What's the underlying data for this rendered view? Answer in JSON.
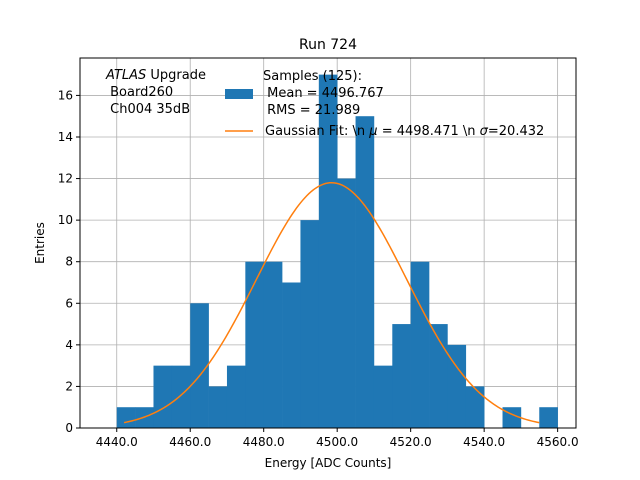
{
  "chart_data": {
    "type": "histogram",
    "title": "Run 724",
    "xlabel": "Energy [ADC Counts]",
    "ylabel": "Entries",
    "xlim": [
      4430,
      4565
    ],
    "ylim": [
      0,
      17.8
    ],
    "grid": true,
    "xticks": [
      4440,
      4460,
      4480,
      4500,
      4520,
      4540,
      4560
    ],
    "xtick_labels": [
      "4440.0",
      "4460.0",
      "4480.0",
      "4500.0",
      "4520.0",
      "4540.0",
      "4560.0"
    ],
    "yticks": [
      0,
      2,
      4,
      6,
      8,
      10,
      12,
      14,
      16
    ],
    "ytick_labels": [
      "0",
      "2",
      "4",
      "6",
      "8",
      "10",
      "12",
      "14",
      "16"
    ],
    "bins": [
      {
        "x0": 4440,
        "x1": 4445,
        "count": 1
      },
      {
        "x0": 4445,
        "x1": 4450,
        "count": 1
      },
      {
        "x0": 4450,
        "x1": 4455,
        "count": 3
      },
      {
        "x0": 4455,
        "x1": 4460,
        "count": 3
      },
      {
        "x0": 4460,
        "x1": 4465,
        "count": 6
      },
      {
        "x0": 4465,
        "x1": 4470,
        "count": 2
      },
      {
        "x0": 4470,
        "x1": 4475,
        "count": 3
      },
      {
        "x0": 4475,
        "x1": 4480,
        "count": 8
      },
      {
        "x0": 4480,
        "x1": 4485,
        "count": 8
      },
      {
        "x0": 4485,
        "x1": 4490,
        "count": 7
      },
      {
        "x0": 4490,
        "x1": 4495,
        "count": 10
      },
      {
        "x0": 4495,
        "x1": 4500,
        "count": 17
      },
      {
        "x0": 4500,
        "x1": 4505,
        "count": 12
      },
      {
        "x0": 4505,
        "x1": 4510,
        "count": 15
      },
      {
        "x0": 4510,
        "x1": 4515,
        "count": 3
      },
      {
        "x0": 4515,
        "x1": 4520,
        "count": 5
      },
      {
        "x0": 4520,
        "x1": 4525,
        "count": 8
      },
      {
        "x0": 4525,
        "x1": 4530,
        "count": 5
      },
      {
        "x0": 4530,
        "x1": 4535,
        "count": 4
      },
      {
        "x0": 4535,
        "x1": 4540,
        "count": 2
      },
      {
        "x0": 4540,
        "x1": 4545,
        "count": 0
      },
      {
        "x0": 4545,
        "x1": 4550,
        "count": 1
      },
      {
        "x0": 4550,
        "x1": 4555,
        "count": 0
      },
      {
        "x0": 4555,
        "x1": 4560,
        "count": 1
      }
    ],
    "fit": {
      "type": "gaussian",
      "mu": 4498.471,
      "sigma": 20.432,
      "amplitude": 11.8,
      "x_range": [
        4442,
        4555
      ]
    },
    "colors": {
      "bars": "#1f77b4",
      "fit": "#ff7f0e",
      "grid": "#b0b0b0"
    },
    "legend": {
      "location": "top-right",
      "samples_entry": "Samples (125):",
      "mean_entry": " Mean = 4496.767",
      "rms_entry": " RMS = 21.989",
      "fit_entry_prefix": "Gaussian Fit: \\n ",
      "fit_mu_symbol": "μ",
      "fit_mu_value": " = 4498.471 \\n ",
      "fit_sigma_symbol": "σ",
      "fit_sigma_value": "=20.432"
    },
    "annotation": {
      "experiment": "ATLAS",
      "suffix": " Upgrade",
      "board": " Board260",
      "channel": " Ch004 35dB"
    }
  }
}
